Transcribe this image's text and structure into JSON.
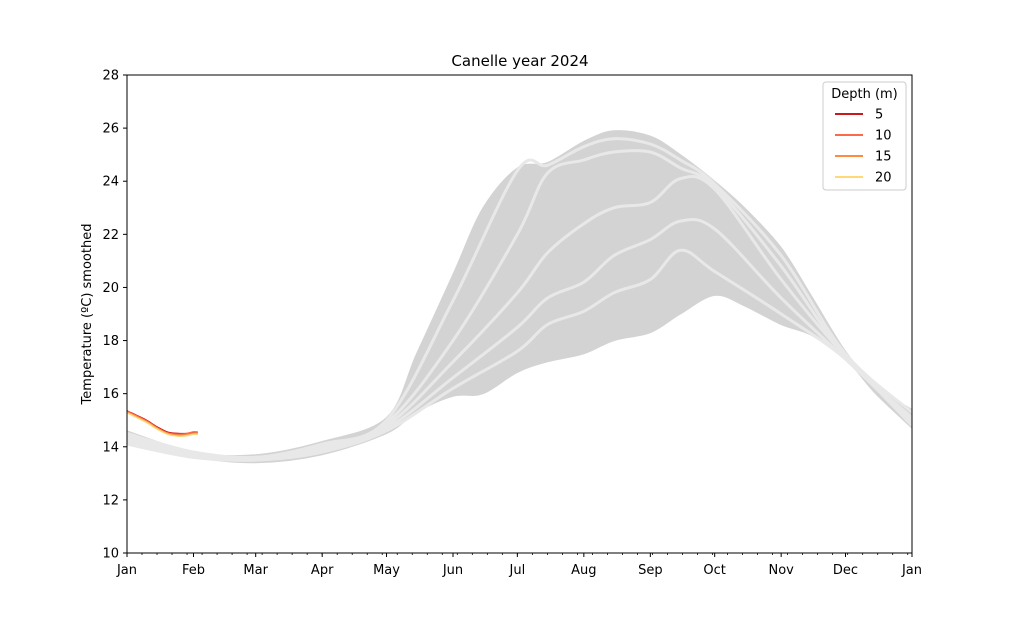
{
  "chart_data": {
    "type": "line",
    "title": "Canelle year 2024",
    "xlabel": "",
    "ylabel": "Temperature (ºC) smoothed",
    "ylim": [
      10,
      28
    ],
    "yticks": [
      10,
      12,
      14,
      16,
      18,
      20,
      22,
      24,
      26,
      28
    ],
    "xlim": [
      "2024-01-01",
      "2025-01-01"
    ],
    "xtick_labels": [
      "Jan",
      "Feb",
      "Mar",
      "Apr",
      "May",
      "Jun",
      "Jul",
      "Aug",
      "Sep",
      "Oct",
      "Nov",
      "Dec",
      "Jan"
    ],
    "xtick_dates": [
      "2024-01-01",
      "2024-02-01",
      "2024-03-01",
      "2024-04-01",
      "2024-05-01",
      "2024-06-01",
      "2024-07-01",
      "2024-08-01",
      "2024-09-01",
      "2024-10-01",
      "2024-11-01",
      "2024-12-01",
      "2025-01-01"
    ],
    "legend": {
      "title": "Depth (m)",
      "placement": "top-right",
      "entries": [
        {
          "label": "5",
          "color": "#cb181d"
        },
        {
          "label": "10",
          "color": "#fb6a4a"
        },
        {
          "label": "15",
          "color": "#fd8d3c"
        },
        {
          "label": "20",
          "color": "#fed976"
        }
      ]
    },
    "background_band": {
      "color": "#d3d3d3",
      "x": [
        "2024-01-01",
        "2024-02-01",
        "2024-03-01",
        "2024-04-01",
        "2024-05-01",
        "2024-05-15",
        "2024-06-01",
        "2024-06-15",
        "2024-07-01",
        "2024-07-15",
        "2024-08-01",
        "2024-08-15",
        "2024-09-01",
        "2024-09-15",
        "2024-10-01",
        "2024-10-15",
        "2024-11-01",
        "2024-11-15",
        "2024-12-01",
        "2024-12-15",
        "2025-01-01"
      ],
      "upper": [
        14.6,
        13.8,
        13.7,
        14.2,
        15.1,
        17.5,
        20.5,
        23.0,
        24.5,
        24.7,
        25.5,
        25.9,
        25.7,
        25.0,
        24.0,
        23.0,
        21.5,
        19.7,
        17.6,
        16.3,
        15.4
      ],
      "lower": [
        14.1,
        13.6,
        13.4,
        13.7,
        14.5,
        15.3,
        15.9,
        16.0,
        16.8,
        17.2,
        17.5,
        18.0,
        18.3,
        19.0,
        19.7,
        19.3,
        18.6,
        18.2,
        17.3,
        16.0,
        14.7
      ]
    },
    "climatology_lines": {
      "color": "#e8e8e8",
      "series": [
        {
          "x": [
            "2024-01-01",
            "2024-02-01",
            "2024-03-01",
            "2024-04-01",
            "2024-05-01",
            "2024-06-01",
            "2024-07-01",
            "2024-07-15",
            "2024-08-01",
            "2024-08-15",
            "2024-09-01",
            "2024-09-15",
            "2024-10-01",
            "2024-11-01",
            "2024-12-01",
            "2025-01-01"
          ],
          "y": [
            14.5,
            13.8,
            13.6,
            14.1,
            15.0,
            19.5,
            24.4,
            24.6,
            25.3,
            25.6,
            25.4,
            24.8,
            23.9,
            21.2,
            17.5,
            15.3
          ]
        },
        {
          "x": [
            "2024-01-01",
            "2024-02-01",
            "2024-03-01",
            "2024-04-01",
            "2024-05-01",
            "2024-06-01",
            "2024-07-01",
            "2024-07-15",
            "2024-08-01",
            "2024-08-15",
            "2024-09-01",
            "2024-09-15",
            "2024-10-01",
            "2024-11-01",
            "2024-12-01",
            "2025-01-01"
          ],
          "y": [
            14.4,
            13.8,
            13.6,
            14.0,
            14.9,
            18.0,
            22.0,
            24.3,
            24.8,
            25.1,
            25.1,
            24.5,
            23.8,
            20.8,
            17.4,
            15.1
          ]
        },
        {
          "x": [
            "2024-01-01",
            "2024-02-01",
            "2024-03-01",
            "2024-04-01",
            "2024-05-01",
            "2024-06-01",
            "2024-07-01",
            "2024-07-15",
            "2024-08-01",
            "2024-08-15",
            "2024-09-01",
            "2024-09-15",
            "2024-10-01",
            "2024-11-01",
            "2024-12-01",
            "2025-01-01"
          ],
          "y": [
            14.3,
            13.7,
            13.6,
            14.0,
            14.8,
            17.2,
            19.8,
            21.3,
            22.4,
            23.0,
            23.2,
            24.1,
            23.7,
            20.3,
            17.4,
            15.0
          ]
        },
        {
          "x": [
            "2024-01-01",
            "2024-02-01",
            "2024-03-01",
            "2024-04-01",
            "2024-05-01",
            "2024-06-01",
            "2024-07-01",
            "2024-07-15",
            "2024-08-01",
            "2024-08-15",
            "2024-09-01",
            "2024-09-15",
            "2024-10-01",
            "2024-11-01",
            "2024-12-01",
            "2025-01-01"
          ],
          "y": [
            14.2,
            13.7,
            13.5,
            13.9,
            14.7,
            16.6,
            18.5,
            19.6,
            20.2,
            21.2,
            21.8,
            22.5,
            22.2,
            19.6,
            17.3,
            14.9
          ]
        },
        {
          "x": [
            "2024-01-01",
            "2024-02-01",
            "2024-03-01",
            "2024-04-01",
            "2024-05-01",
            "2024-06-01",
            "2024-07-01",
            "2024-07-15",
            "2024-08-01",
            "2024-08-15",
            "2024-09-01",
            "2024-09-15",
            "2024-10-01",
            "2024-11-01",
            "2024-12-01",
            "2025-01-01"
          ],
          "y": [
            14.1,
            13.6,
            13.5,
            13.8,
            14.6,
            16.2,
            17.6,
            18.6,
            19.1,
            19.8,
            20.3,
            21.4,
            20.6,
            19.0,
            17.3,
            14.8
          ]
        }
      ]
    },
    "series": [
      {
        "name": "5",
        "color": "#cb181d",
        "x": [
          "2024-01-01",
          "2024-01-05",
          "2024-01-10",
          "2024-01-15",
          "2024-01-20",
          "2024-01-25",
          "2024-01-29",
          "2024-02-01",
          "2024-02-03"
        ],
        "y": [
          15.35,
          15.2,
          15.0,
          14.75,
          14.55,
          14.5,
          14.5,
          14.55,
          14.55
        ]
      },
      {
        "name": "10",
        "color": "#fb6a4a",
        "x": [
          "2024-01-01",
          "2024-01-05",
          "2024-01-10",
          "2024-01-15",
          "2024-01-20",
          "2024-01-25",
          "2024-01-29",
          "2024-02-01",
          "2024-02-03"
        ],
        "y": [
          15.33,
          15.18,
          14.98,
          14.72,
          14.52,
          14.47,
          14.5,
          14.56,
          14.55
        ]
      },
      {
        "name": "15",
        "color": "#fd8d3c",
        "x": [
          "2024-01-01",
          "2024-01-05",
          "2024-01-10",
          "2024-01-15",
          "2024-01-20",
          "2024-01-25",
          "2024-01-29",
          "2024-02-01",
          "2024-02-03"
        ],
        "y": [
          15.3,
          15.15,
          14.95,
          14.7,
          14.5,
          14.43,
          14.45,
          14.5,
          14.5
        ]
      },
      {
        "name": "20",
        "color": "#fed976",
        "x": [
          "2024-01-01",
          "2024-01-05",
          "2024-01-10",
          "2024-01-15",
          "2024-01-20",
          "2024-01-25",
          "2024-01-29",
          "2024-02-01",
          "2024-02-03"
        ],
        "y": [
          15.28,
          15.12,
          14.92,
          14.67,
          14.47,
          14.4,
          14.42,
          14.47,
          14.47
        ]
      }
    ]
  }
}
